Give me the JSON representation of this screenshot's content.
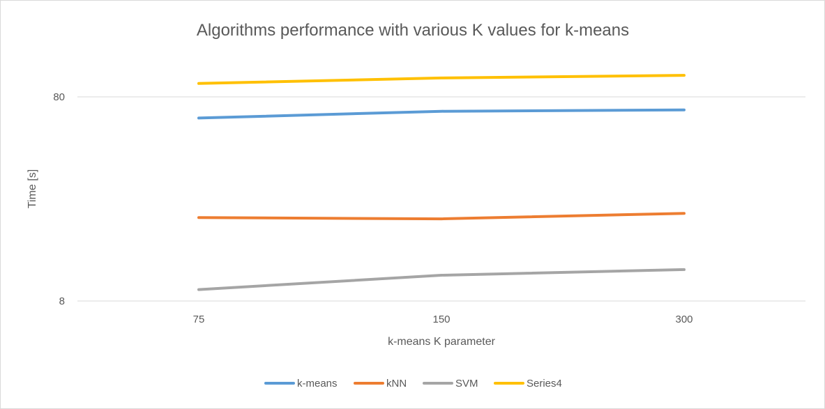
{
  "chart_data": {
    "type": "line",
    "title": "Algorithms performance with various K values for k-means",
    "xlabel": "k-means K parameter",
    "ylabel": "Time [s]",
    "categories": [
      "75",
      "150",
      "300"
    ],
    "y_scale": "log",
    "ylim": [
      8,
      160
    ],
    "y_ticks": [
      8,
      80
    ],
    "y_tick_labels": [
      "8",
      "80"
    ],
    "grid": true,
    "legend_position": "bottom",
    "series": [
      {
        "name": "k-means",
        "color": "#5b9bd5",
        "values": [
          63,
          68,
          69
        ]
      },
      {
        "name": "kNN",
        "color": "#ed7d31",
        "values": [
          20.5,
          20.2,
          21.5
        ]
      },
      {
        "name": "SVM",
        "color": "#a5a5a5",
        "values": [
          9.1,
          10.7,
          11.4
        ]
      },
      {
        "name": "Series4",
        "color": "#ffc000",
        "values": [
          93,
          99,
          102
        ]
      }
    ]
  }
}
